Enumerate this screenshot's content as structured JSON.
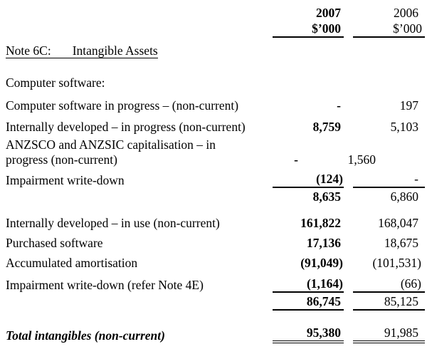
{
  "header": {
    "col_2007": {
      "year": "2007",
      "unit": "$’000"
    },
    "col_2006": {
      "year": "2006",
      "unit": "$’000"
    }
  },
  "note_heading": {
    "label": "Note 6C:",
    "title": "Intangible Assets"
  },
  "section_heading": "Computer software:",
  "rows": [
    {
      "label": "Computer software in progress – (non-current)",
      "y2007": "-",
      "y2006": "197"
    },
    {
      "label": "Internally developed – in progress (non-current)",
      "y2007": "8,759",
      "y2006": "5,103"
    },
    {
      "label": "ANZSCO and ANZSIC capitalisation – in progress (non-current)",
      "y2007": "-",
      "y2006": "1,560"
    },
    {
      "label": "Impairment write-down",
      "y2007": "(124)",
      "y2006": "-"
    },
    {
      "label": "",
      "y2007": "8,635",
      "y2006": "6,860"
    },
    {
      "label": "Internally developed – in use (non-current)",
      "y2007": "161,822",
      "y2006": "168,047"
    },
    {
      "label": "Purchased software",
      "y2007": "17,136",
      "y2006": "18,675"
    },
    {
      "label": "Accumulated amortisation",
      "y2007": "(91,049)",
      "y2006": "(101,531)"
    },
    {
      "label": "Impairment write-down (refer Note 4E)",
      "y2007": "(1,164)",
      "y2006": "(66)"
    },
    {
      "label": "",
      "y2007": "86,745",
      "y2006": "85,125"
    }
  ],
  "total_row": {
    "label": "Total intangibles (non-current)",
    "y2007": "95,380",
    "y2006": "91,985"
  },
  "colors": {
    "text": "#000000",
    "background": "#ffffff",
    "rule": "#000000"
  }
}
